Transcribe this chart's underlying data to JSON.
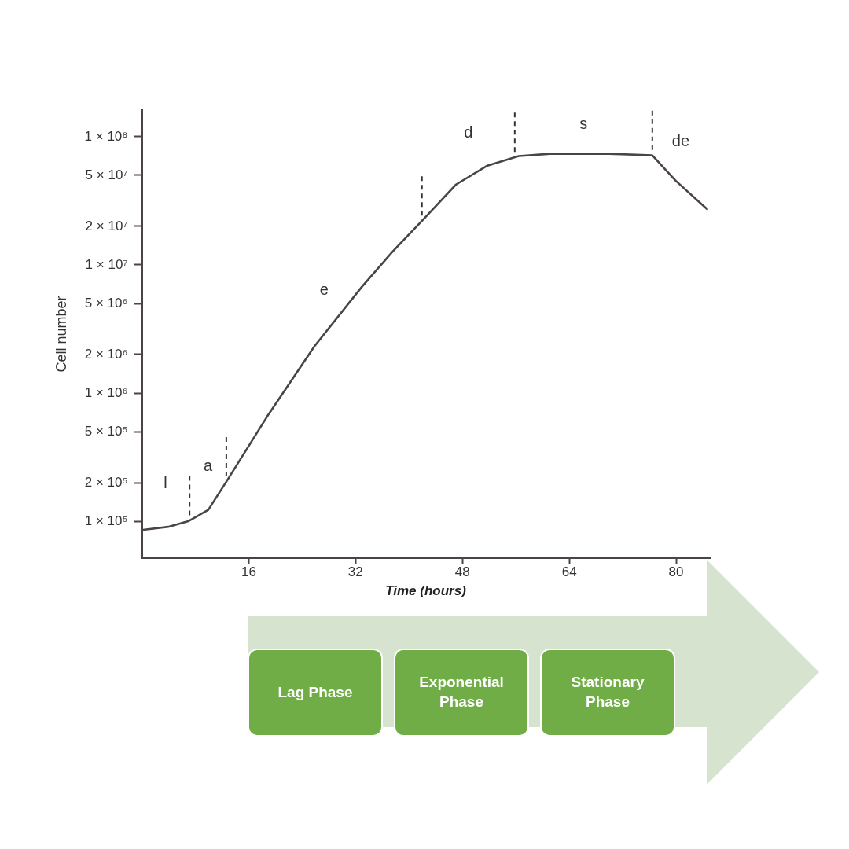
{
  "chart_data": {
    "type": "line",
    "xlabel": "Time (hours)",
    "ylabel": "Cell number",
    "log": "y",
    "grid": false,
    "marker": "none",
    "line_style": "solid",
    "xlim": [
      0,
      85
    ],
    "ylim": [
      52000,
      160000000
    ],
    "xticks": [
      16,
      32,
      48,
      64,
      80
    ],
    "yticks": [
      {
        "value": 100000,
        "label": "1 × 10⁵"
      },
      {
        "value": 200000,
        "label": "2 × 10⁵"
      },
      {
        "value": 500000,
        "label": "5 × 10⁵"
      },
      {
        "value": 1000000,
        "label": "1 × 10⁶"
      },
      {
        "value": 2000000,
        "label": "2 × 10⁶"
      },
      {
        "value": 5000000,
        "label": "5 × 10⁶"
      },
      {
        "value": 10000000,
        "label": "1 × 10⁷"
      },
      {
        "value": 20000000,
        "label": "2 × 10⁷"
      },
      {
        "value": 50000000,
        "label": "5 × 10⁷"
      },
      {
        "value": 100000000,
        "label": "1 × 10⁸"
      }
    ],
    "series": [
      {
        "color": "#4a4444",
        "x": [
          0,
          4,
          7.1,
          10,
          12.9,
          18.8,
          25.9,
          32.9,
          37.6,
          42.4,
          47.1,
          51.8,
          56.5,
          61.2,
          70,
          76.5,
          80,
          84.7
        ],
        "values": [
          85000,
          90000,
          100000,
          122000,
          210000,
          650000,
          2300000,
          6600000,
          12600000,
          23000000,
          42000000,
          59000000,
          70000000,
          73000000,
          73000000,
          71000000,
          45000000,
          27000000
        ]
      }
    ],
    "ref_lines": [
      {
        "axis": "x",
        "value": 7.2,
        "line_style": "dashed",
        "color": "#333333"
      },
      {
        "axis": "x",
        "value": 12.7,
        "line_style": "dashed",
        "color": "#333333"
      },
      {
        "axis": "x",
        "value": 42,
        "line_style": "dashed",
        "color": "#333333"
      },
      {
        "axis": "x",
        "value": 55.9,
        "line_style": "dashed",
        "color": "#333333"
      },
      {
        "axis": "x",
        "value": 76.5,
        "line_style": "dashed",
        "color": "#333333"
      }
    ],
    "annotations": [
      "l",
      "a",
      "e",
      "d",
      "s",
      "de",
      "Lag Phase",
      "Exponential Phase",
      "Stationary Phase"
    ]
  }
}
